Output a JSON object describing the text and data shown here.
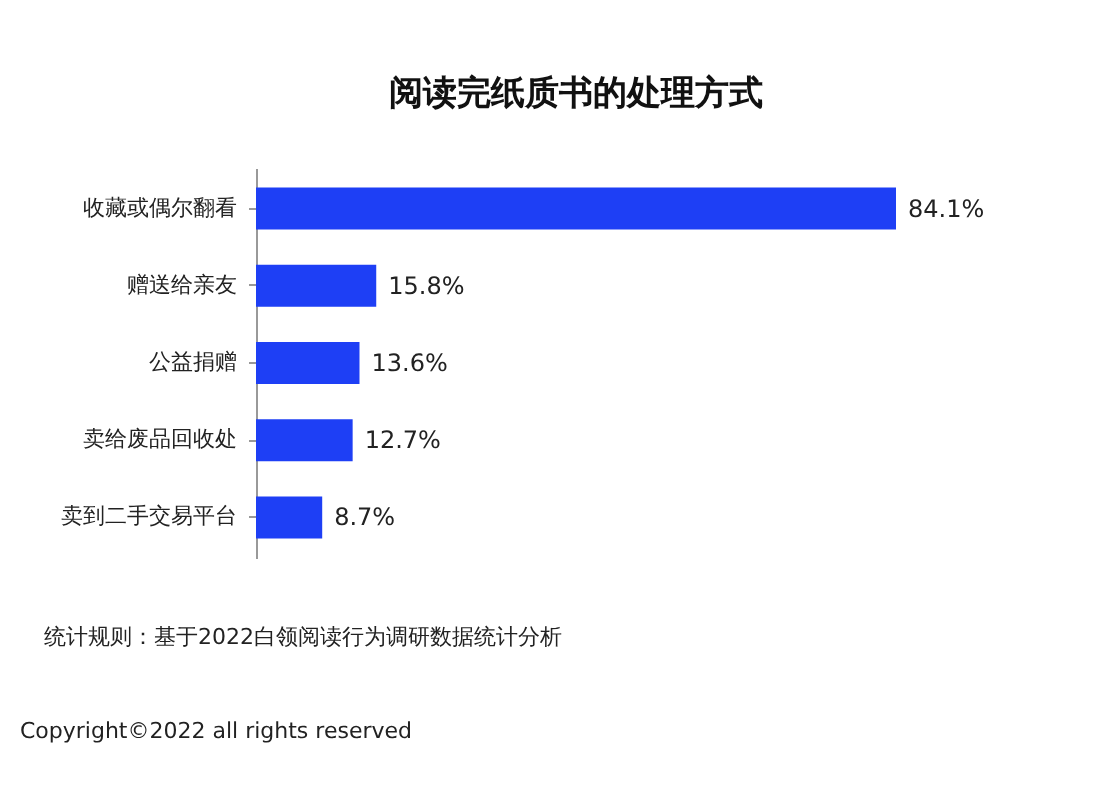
{
  "chart_data": {
    "type": "bar",
    "orientation": "horizontal",
    "title": "阅读完纸质书的处理方式",
    "categories": [
      "收藏或偶尔翻看",
      "赠送给亲友",
      "公益捐赠",
      "卖给废品回收处",
      "卖到二手交易平台"
    ],
    "values": [
      84.1,
      15.8,
      13.6,
      12.7,
      8.7
    ],
    "value_labels": [
      "84.1%",
      "15.8%",
      "13.6%",
      "12.7%",
      "8.7%"
    ],
    "color": "#1e3ff5",
    "grid": false,
    "annotations": [
      "统计规则：基于2022白领阅读行为调研数据统计分析",
      "Copyright©2022 all rights reserved"
    ]
  }
}
